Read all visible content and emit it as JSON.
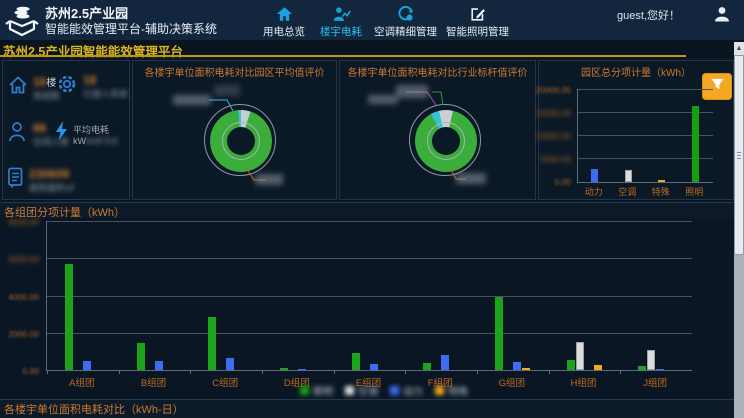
{
  "header": {
    "title_line1": "苏州2.5产业园",
    "title_line2": "智能能效管理平台-辅助决策系统",
    "nav": [
      {
        "label": "用电总览",
        "icon": "home-solid-icon",
        "active": false
      },
      {
        "label": "楼宇电耗",
        "icon": "person-chart-icon",
        "active": true
      },
      {
        "label": "空调精细管理",
        "icon": "hvac-icon",
        "active": false
      },
      {
        "label": "智能照明管理",
        "icon": "edit-icon",
        "active": false
      }
    ],
    "greeting": "guest,您好！"
  },
  "subheader": {
    "title": "苏州2.5产业园智能能效管理平台"
  },
  "kpi_panel": {
    "note": "numeric values and sub labels are blurred/censored in the source screenshot",
    "items": [
      {
        "icon": "home-icon",
        "value": "19",
        "suffix": "楼",
        "sub": "效组数",
        "blurred": true
      },
      {
        "icon": "gear-icon",
        "value": "18",
        "suffix": "",
        "sub": "已接入系统",
        "blurred": true
      },
      {
        "icon": "person-icon",
        "value": "66",
        "suffix": "",
        "sub": "在线人数",
        "blurred": true
      },
      {
        "icon": "bolt-icon",
        "label": "平均电耗kW",
        "value": "h/㎡ 5.6",
        "blurred": true
      },
      {
        "icon": "doc-icon",
        "value": "230609",
        "suffix": "",
        "sub": "建筑面积㎡",
        "blurred": true
      }
    ]
  },
  "colors": {
    "accent_yellow": "#dcb422",
    "accent_orange": "#cd7a2e",
    "accent_cyan": "#2cc3f2",
    "filter_button": "#f5a623",
    "bar_green": "#1ca41c",
    "bar_blue": "#3e6cf0",
    "bar_white": "#dcdcdc",
    "bar_orange": "#f5a81e"
  },
  "chart_data": [
    {
      "type": "pie",
      "title": "各楼宇单位面积电耗对比园区平均值评价",
      "note": "slice callout labels are blurred in source",
      "slices": [
        {
          "pct": 5,
          "color": "#c4cdd1"
        },
        {
          "pct": 93.5,
          "color": "#3aad3a"
        },
        {
          "pct": 1.5,
          "color": "#38c4d4"
        }
      ]
    },
    {
      "type": "pie",
      "title": "各楼宇单位面积电耗对比行业标杆值评价",
      "note": "slice callout labels are blurred in source",
      "slices": [
        {
          "pct": 3.6,
          "color": "#c9d0d4"
        },
        {
          "pct": 88.3,
          "color": "#3aad3a"
        },
        {
          "pct": 4.5,
          "color": "#35c4d6"
        },
        {
          "pct": 3.6,
          "color": "#c9d0d4"
        }
      ]
    },
    {
      "type": "bar",
      "title": "园区总分项计量（kWh）",
      "categories": [
        "动力",
        "空调",
        "特殊",
        "照明"
      ],
      "values": [
        2800,
        2700,
        400,
        16600
      ],
      "colors": [
        "#3e6cf0",
        "#dcdcdc",
        "#f5a81e",
        "#14a014"
      ],
      "ylim": [
        0,
        20000
      ],
      "yticks": [
        "20000.00",
        "15000.00",
        "10000.00",
        "5000.00",
        "0.00"
      ],
      "yticks_blurred": true,
      "grid": true
    },
    {
      "type": "bar",
      "title": "各组团分项计量（kWh）",
      "categories": [
        "A组团",
        "B组团",
        "C组团",
        "D组团",
        "E组团",
        "F组团",
        "G组团",
        "H组团",
        "J组团"
      ],
      "series": [
        {
          "name": "照明",
          "color": "#1ca41c",
          "values": [
            5700,
            1450,
            2850,
            120,
            900,
            380,
            3900,
            520,
            220
          ]
        },
        {
          "name": "空调",
          "color": "#dcdcdc",
          "values": [
            0,
            0,
            0,
            0,
            0,
            0,
            0,
            1500,
            1080
          ]
        },
        {
          "name": "动力",
          "color": "#3e6cf0",
          "values": [
            500,
            480,
            620,
            60,
            300,
            800,
            420,
            0,
            40
          ]
        },
        {
          "name": "特殊",
          "color": "#f5a81e",
          "values": [
            0,
            0,
            0,
            0,
            0,
            0,
            100,
            280,
            0
          ]
        }
      ],
      "ylim": [
        0,
        8000
      ],
      "yticks": [
        "8000.00",
        "6000.00",
        "4000.00",
        "2000.00",
        "0.00"
      ],
      "yticks_blurred": true,
      "legend_blurred": true,
      "legend_position": "bottom-center",
      "grid": true
    }
  ],
  "footer_bar": {
    "title": "各楼宇单位面积电耗对比（kWh-日）"
  }
}
